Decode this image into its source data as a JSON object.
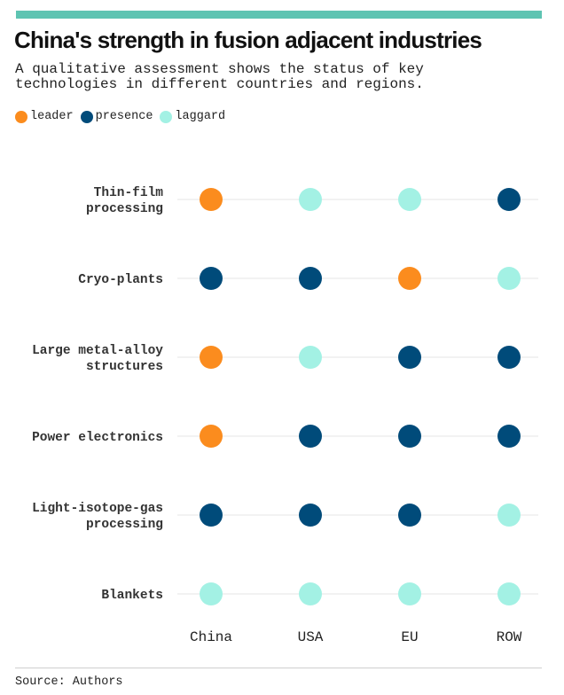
{
  "title": "China's strength in fusion adjacent industries",
  "subtitle_lines": [
    "A qualitative assessment shows the status of key",
    "technologies in different countries and regions."
  ],
  "legend": [
    {
      "key": "leader",
      "label": "leader",
      "color": "#fb8c1e"
    },
    {
      "key": "presence",
      "label": "presence",
      "color": "#004b7a"
    },
    {
      "key": "laggard",
      "label": "laggard",
      "color": "#a3f1e4"
    }
  ],
  "source": "Source: Authors",
  "chart_data": {
    "type": "table",
    "columns": [
      "China",
      "USA",
      "EU",
      "ROW"
    ],
    "rows": [
      {
        "label_lines": [
          "Thin-film",
          "processing"
        ],
        "values": [
          "leader",
          "laggard",
          "laggard",
          "presence"
        ]
      },
      {
        "label_lines": [
          "Cryo-plants"
        ],
        "values": [
          "presence",
          "presence",
          "leader",
          "laggard"
        ]
      },
      {
        "label_lines": [
          "Large metal-alloy",
          "structures"
        ],
        "values": [
          "leader",
          "laggard",
          "presence",
          "presence"
        ]
      },
      {
        "label_lines": [
          "Power electronics"
        ],
        "values": [
          "leader",
          "presence",
          "presence",
          "presence"
        ]
      },
      {
        "label_lines": [
          "Light-isotope-gas",
          "processing"
        ],
        "values": [
          "presence",
          "presence",
          "presence",
          "laggard"
        ]
      },
      {
        "label_lines": [
          "Blankets"
        ],
        "values": [
          "laggard",
          "laggard",
          "laggard",
          "laggard"
        ]
      }
    ]
  }
}
